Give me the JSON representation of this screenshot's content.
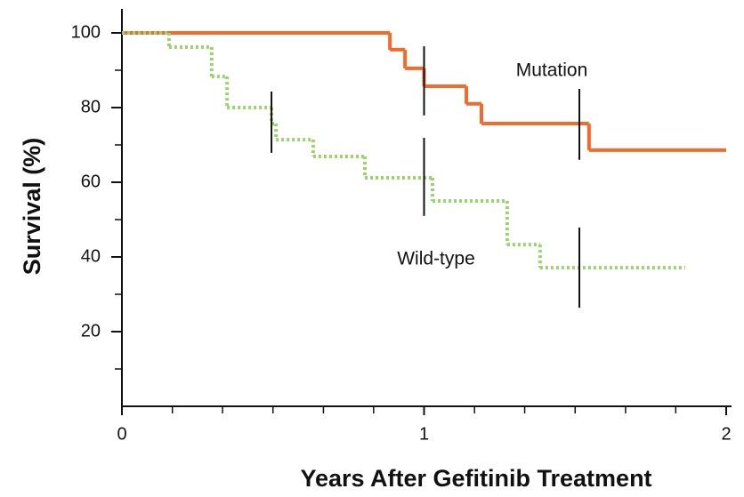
{
  "chart_data": {
    "type": "step",
    "x_label": "Years After Gefitinib Treatment",
    "y_label": "Survival (%)",
    "xlim": [
      0,
      2
    ],
    "ylim": [
      0,
      105
    ],
    "xticks": [
      0,
      1,
      2
    ],
    "xticks_minor": [
      0.167,
      0.333,
      0.5,
      0.667,
      0.833,
      1.167,
      1.333,
      1.5,
      1.667,
      1.833
    ],
    "yticks": [
      20,
      40,
      60,
      80,
      100
    ],
    "yticks_minor": [
      10,
      30,
      50,
      70,
      90
    ],
    "series": [
      {
        "name": "Mutation",
        "color": "#f26b2a",
        "dash": false,
        "x": [
          0,
          0.887,
          0.937,
          1.0,
          1.14,
          1.19,
          1.546,
          2.0
        ],
        "values": [
          100,
          95.5,
          90.5,
          85.7,
          81,
          75.7,
          68.6,
          68.6
        ],
        "error_bars": [
          {
            "x": 1.0,
            "low": 77.9,
            "high": 96.4
          },
          {
            "x": 1.514,
            "low": 66,
            "high": 85
          }
        ]
      },
      {
        "name": "Wild-type",
        "color": "#9bd36b",
        "dash": true,
        "x": [
          0,
          0.156,
          0.297,
          0.348,
          0.495,
          0.51,
          0.633,
          0.804,
          1.028,
          1.275,
          1.384,
          1.864
        ],
        "values": [
          100,
          96.2,
          88.3,
          80,
          75.7,
          71.4,
          66.9,
          61.2,
          55,
          43.3,
          37.1,
          37.1
        ],
        "error_bars": [
          {
            "x": 0.495,
            "low": 67.9,
            "high": 84.3
          },
          {
            "x": 1.0,
            "low": 51,
            "high": 71.9
          },
          {
            "x": 1.514,
            "low": 26.4,
            "high": 47.9
          }
        ]
      }
    ]
  }
}
